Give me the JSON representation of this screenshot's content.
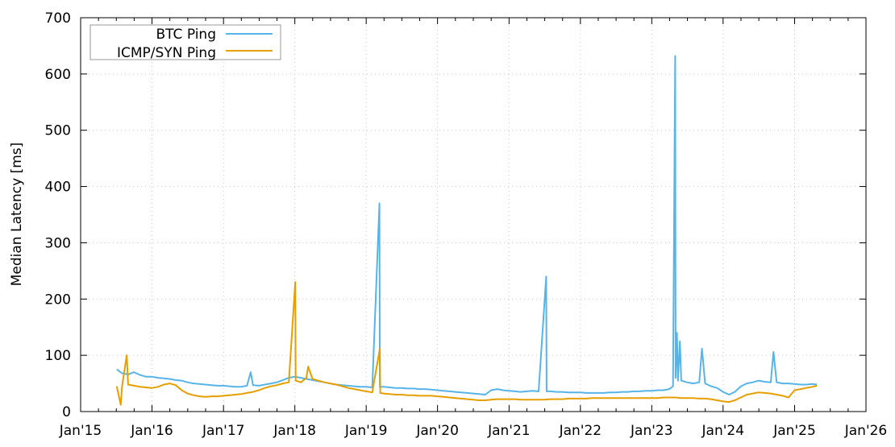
{
  "chart_data": {
    "type": "line",
    "title": "",
    "xlabel": "",
    "ylabel": "Median Latency [ms]",
    "xlim": [
      "2015-01-01",
      "2026-01-01"
    ],
    "ylim": [
      0,
      700
    ],
    "grid": true,
    "legend_position": "top-left",
    "x_ticks": [
      {
        "date": "2015-01-01",
        "label": "Jan'15"
      },
      {
        "date": "2016-01-01",
        "label": "Jan'16"
      },
      {
        "date": "2017-01-01",
        "label": "Jan'17"
      },
      {
        "date": "2018-01-01",
        "label": "Jan'18"
      },
      {
        "date": "2019-01-01",
        "label": "Jan'19"
      },
      {
        "date": "2020-01-01",
        "label": "Jan'20"
      },
      {
        "date": "2021-01-01",
        "label": "Jan'21"
      },
      {
        "date": "2022-01-01",
        "label": "Jan'22"
      },
      {
        "date": "2023-01-01",
        "label": "Jan'23"
      },
      {
        "date": "2024-01-01",
        "label": "Jan'24"
      },
      {
        "date": "2025-01-01",
        "label": "Jan'25"
      },
      {
        "date": "2026-01-01",
        "label": "Jan'26"
      }
    ],
    "y_ticks": [
      0,
      100,
      200,
      300,
      400,
      500,
      600,
      700
    ],
    "series": [
      {
        "name": "BTC Ping",
        "color": "#56b4e9",
        "points": [
          [
            "2015-07-05",
            75
          ],
          [
            "2015-08-01",
            68
          ],
          [
            "2015-09-01",
            66
          ],
          [
            "2015-10-01",
            70
          ],
          [
            "2015-11-01",
            65
          ],
          [
            "2015-12-01",
            62
          ],
          [
            "2016-01-01",
            62
          ],
          [
            "2016-02-01",
            60
          ],
          [
            "2016-03-01",
            59
          ],
          [
            "2016-04-01",
            58
          ],
          [
            "2016-05-01",
            56
          ],
          [
            "2016-06-01",
            55
          ],
          [
            "2016-07-01",
            52
          ],
          [
            "2016-08-01",
            50
          ],
          [
            "2016-09-01",
            49
          ],
          [
            "2016-10-01",
            48
          ],
          [
            "2016-11-01",
            47
          ],
          [
            "2016-12-01",
            46
          ],
          [
            "2017-01-01",
            46
          ],
          [
            "2017-02-01",
            45
          ],
          [
            "2017-03-01",
            44
          ],
          [
            "2017-04-01",
            44
          ],
          [
            "2017-05-01",
            46
          ],
          [
            "2017-05-20",
            70
          ],
          [
            "2017-06-01",
            47
          ],
          [
            "2017-07-01",
            46
          ],
          [
            "2017-08-01",
            48
          ],
          [
            "2017-09-01",
            50
          ],
          [
            "2017-10-01",
            52
          ],
          [
            "2017-11-01",
            56
          ],
          [
            "2017-12-01",
            60
          ],
          [
            "2018-01-01",
            62
          ],
          [
            "2018-02-01",
            60
          ],
          [
            "2018-03-01",
            58
          ],
          [
            "2018-04-01",
            56
          ],
          [
            "2018-05-01",
            54
          ],
          [
            "2018-06-01",
            52
          ],
          [
            "2018-07-01",
            50
          ],
          [
            "2018-08-01",
            48
          ],
          [
            "2018-09-01",
            47
          ],
          [
            "2018-10-01",
            46
          ],
          [
            "2018-11-01",
            45
          ],
          [
            "2018-12-01",
            44
          ],
          [
            "2019-01-01",
            44
          ],
          [
            "2019-02-01",
            43
          ],
          [
            "2019-03-10",
            370
          ],
          [
            "2019-03-12",
            44
          ],
          [
            "2019-04-01",
            44
          ],
          [
            "2019-05-01",
            43
          ],
          [
            "2019-06-01",
            42
          ],
          [
            "2019-07-01",
            42
          ],
          [
            "2019-08-01",
            41
          ],
          [
            "2019-09-01",
            41
          ],
          [
            "2019-10-01",
            40
          ],
          [
            "2019-11-01",
            40
          ],
          [
            "2019-12-01",
            39
          ],
          [
            "2020-01-01",
            38
          ],
          [
            "2020-02-01",
            37
          ],
          [
            "2020-03-01",
            36
          ],
          [
            "2020-04-01",
            35
          ],
          [
            "2020-05-01",
            34
          ],
          [
            "2020-06-01",
            33
          ],
          [
            "2020-07-01",
            32
          ],
          [
            "2020-08-01",
            31
          ],
          [
            "2020-09-01",
            30
          ],
          [
            "2020-10-01",
            38
          ],
          [
            "2020-11-01",
            40
          ],
          [
            "2020-12-01",
            38
          ],
          [
            "2021-01-01",
            37
          ],
          [
            "2021-02-01",
            36
          ],
          [
            "2021-03-01",
            35
          ],
          [
            "2021-04-01",
            36
          ],
          [
            "2021-05-01",
            37
          ],
          [
            "2021-06-01",
            36
          ],
          [
            "2021-07-10",
            240
          ],
          [
            "2021-07-12",
            36
          ],
          [
            "2021-08-01",
            36
          ],
          [
            "2021-09-01",
            35
          ],
          [
            "2021-10-01",
            35
          ],
          [
            "2021-11-01",
            34
          ],
          [
            "2021-12-01",
            34
          ],
          [
            "2022-01-01",
            34
          ],
          [
            "2022-02-01",
            33
          ],
          [
            "2022-03-01",
            33
          ],
          [
            "2022-04-01",
            33
          ],
          [
            "2022-05-01",
            33
          ],
          [
            "2022-06-01",
            34
          ],
          [
            "2022-07-01",
            34
          ],
          [
            "2022-08-01",
            35
          ],
          [
            "2022-09-01",
            35
          ],
          [
            "2022-10-01",
            36
          ],
          [
            "2022-11-01",
            36
          ],
          [
            "2022-12-01",
            37
          ],
          [
            "2023-01-01",
            37
          ],
          [
            "2023-02-01",
            38
          ],
          [
            "2023-03-01",
            38
          ],
          [
            "2023-04-01",
            40
          ],
          [
            "2023-04-20",
            45
          ],
          [
            "2023-05-01",
            632
          ],
          [
            "2023-05-03",
            60
          ],
          [
            "2023-05-10",
            140
          ],
          [
            "2023-05-15",
            55
          ],
          [
            "2023-05-25",
            125
          ],
          [
            "2023-06-01",
            55
          ],
          [
            "2023-07-01",
            52
          ],
          [
            "2023-08-01",
            50
          ],
          [
            "2023-09-01",
            52
          ],
          [
            "2023-09-15",
            112
          ],
          [
            "2023-10-01",
            50
          ],
          [
            "2023-11-01",
            45
          ],
          [
            "2023-12-01",
            42
          ],
          [
            "2024-01-01",
            35
          ],
          [
            "2024-02-01",
            30
          ],
          [
            "2024-03-01",
            35
          ],
          [
            "2024-04-01",
            45
          ],
          [
            "2024-05-01",
            50
          ],
          [
            "2024-06-01",
            52
          ],
          [
            "2024-07-01",
            55
          ],
          [
            "2024-08-01",
            53
          ],
          [
            "2024-09-01",
            52
          ],
          [
            "2024-09-15",
            106
          ],
          [
            "2024-10-01",
            52
          ],
          [
            "2024-11-01",
            50
          ],
          [
            "2024-12-01",
            50
          ],
          [
            "2025-01-01",
            49
          ],
          [
            "2025-02-01",
            48
          ],
          [
            "2025-03-01",
            48
          ],
          [
            "2025-04-01",
            49
          ],
          [
            "2025-04-25",
            48
          ]
        ]
      },
      {
        "name": "ICMP/SYN Ping",
        "color": "#e69f00",
        "points": [
          [
            "2015-07-05",
            45
          ],
          [
            "2015-07-25",
            12
          ],
          [
            "2015-08-01",
            45
          ],
          [
            "2015-08-25",
            100
          ],
          [
            "2015-09-01",
            48
          ],
          [
            "2015-10-01",
            46
          ],
          [
            "2015-11-01",
            44
          ],
          [
            "2015-12-01",
            43
          ],
          [
            "2016-01-01",
            42
          ],
          [
            "2016-02-01",
            44
          ],
          [
            "2016-03-01",
            48
          ],
          [
            "2016-04-01",
            50
          ],
          [
            "2016-05-01",
            47
          ],
          [
            "2016-06-01",
            38
          ],
          [
            "2016-07-01",
            32
          ],
          [
            "2016-08-01",
            29
          ],
          [
            "2016-09-01",
            27
          ],
          [
            "2016-10-01",
            26
          ],
          [
            "2016-11-01",
            27
          ],
          [
            "2016-12-01",
            27
          ],
          [
            "2017-01-01",
            28
          ],
          [
            "2017-02-01",
            29
          ],
          [
            "2017-03-01",
            30
          ],
          [
            "2017-04-01",
            31
          ],
          [
            "2017-05-01",
            33
          ],
          [
            "2017-06-01",
            35
          ],
          [
            "2017-07-01",
            38
          ],
          [
            "2017-08-01",
            42
          ],
          [
            "2017-09-01",
            45
          ],
          [
            "2017-10-01",
            47
          ],
          [
            "2017-11-01",
            50
          ],
          [
            "2017-12-01",
            52
          ],
          [
            "2018-01-03",
            230
          ],
          [
            "2018-01-05",
            55
          ],
          [
            "2018-02-01",
            52
          ],
          [
            "2018-03-01",
            60
          ],
          [
            "2018-03-10",
            80
          ],
          [
            "2018-04-01",
            58
          ],
          [
            "2018-05-01",
            55
          ],
          [
            "2018-06-01",
            52
          ],
          [
            "2018-07-01",
            50
          ],
          [
            "2018-08-01",
            48
          ],
          [
            "2018-09-01",
            45
          ],
          [
            "2018-10-01",
            42
          ],
          [
            "2018-11-01",
            40
          ],
          [
            "2018-12-01",
            38
          ],
          [
            "2019-01-01",
            36
          ],
          [
            "2019-02-01",
            34
          ],
          [
            "2019-03-12",
            112
          ],
          [
            "2019-03-14",
            33
          ],
          [
            "2019-04-01",
            32
          ],
          [
            "2019-05-01",
            31
          ],
          [
            "2019-06-01",
            30
          ],
          [
            "2019-07-01",
            30
          ],
          [
            "2019-08-01",
            29
          ],
          [
            "2019-09-01",
            29
          ],
          [
            "2019-10-01",
            28
          ],
          [
            "2019-11-01",
            28
          ],
          [
            "2019-12-01",
            28
          ],
          [
            "2020-01-01",
            27
          ],
          [
            "2020-02-01",
            26
          ],
          [
            "2020-03-01",
            25
          ],
          [
            "2020-04-01",
            24
          ],
          [
            "2020-05-01",
            23
          ],
          [
            "2020-06-01",
            22
          ],
          [
            "2020-07-01",
            21
          ],
          [
            "2020-08-01",
            20
          ],
          [
            "2020-09-01",
            20
          ],
          [
            "2020-10-01",
            21
          ],
          [
            "2020-11-01",
            22
          ],
          [
            "2020-12-01",
            22
          ],
          [
            "2021-01-01",
            22
          ],
          [
            "2021-02-01",
            22
          ],
          [
            "2021-03-01",
            21
          ],
          [
            "2021-04-01",
            21
          ],
          [
            "2021-05-01",
            21
          ],
          [
            "2021-06-01",
            21
          ],
          [
            "2021-07-01",
            21
          ],
          [
            "2021-08-01",
            22
          ],
          [
            "2021-09-01",
            22
          ],
          [
            "2021-10-01",
            22
          ],
          [
            "2021-11-01",
            23
          ],
          [
            "2021-12-01",
            23
          ],
          [
            "2022-01-01",
            23
          ],
          [
            "2022-02-01",
            23
          ],
          [
            "2022-03-01",
            24
          ],
          [
            "2022-04-01",
            24
          ],
          [
            "2022-05-01",
            24
          ],
          [
            "2022-06-01",
            24
          ],
          [
            "2022-07-01",
            24
          ],
          [
            "2022-08-01",
            24
          ],
          [
            "2022-09-01",
            24
          ],
          [
            "2022-10-01",
            24
          ],
          [
            "2022-11-01",
            24
          ],
          [
            "2022-12-01",
            24
          ],
          [
            "2023-01-01",
            24
          ],
          [
            "2023-02-01",
            24
          ],
          [
            "2023-03-01",
            25
          ],
          [
            "2023-04-01",
            25
          ],
          [
            "2023-05-01",
            25
          ],
          [
            "2023-06-01",
            24
          ],
          [
            "2023-07-01",
            24
          ],
          [
            "2023-08-01",
            24
          ],
          [
            "2023-09-01",
            23
          ],
          [
            "2023-10-01",
            23
          ],
          [
            "2023-11-01",
            22
          ],
          [
            "2023-12-01",
            20
          ],
          [
            "2024-01-01",
            18
          ],
          [
            "2024-02-01",
            17
          ],
          [
            "2024-03-01",
            20
          ],
          [
            "2024-04-01",
            25
          ],
          [
            "2024-05-01",
            30
          ],
          [
            "2024-06-01",
            32
          ],
          [
            "2024-07-01",
            34
          ],
          [
            "2024-08-01",
            33
          ],
          [
            "2024-09-01",
            32
          ],
          [
            "2024-10-01",
            30
          ],
          [
            "2024-11-01",
            28
          ],
          [
            "2024-12-01",
            25
          ],
          [
            "2025-01-01",
            38
          ],
          [
            "2025-02-01",
            40
          ],
          [
            "2025-03-01",
            42
          ],
          [
            "2025-04-01",
            44
          ],
          [
            "2025-04-25",
            46
          ]
        ]
      }
    ]
  }
}
